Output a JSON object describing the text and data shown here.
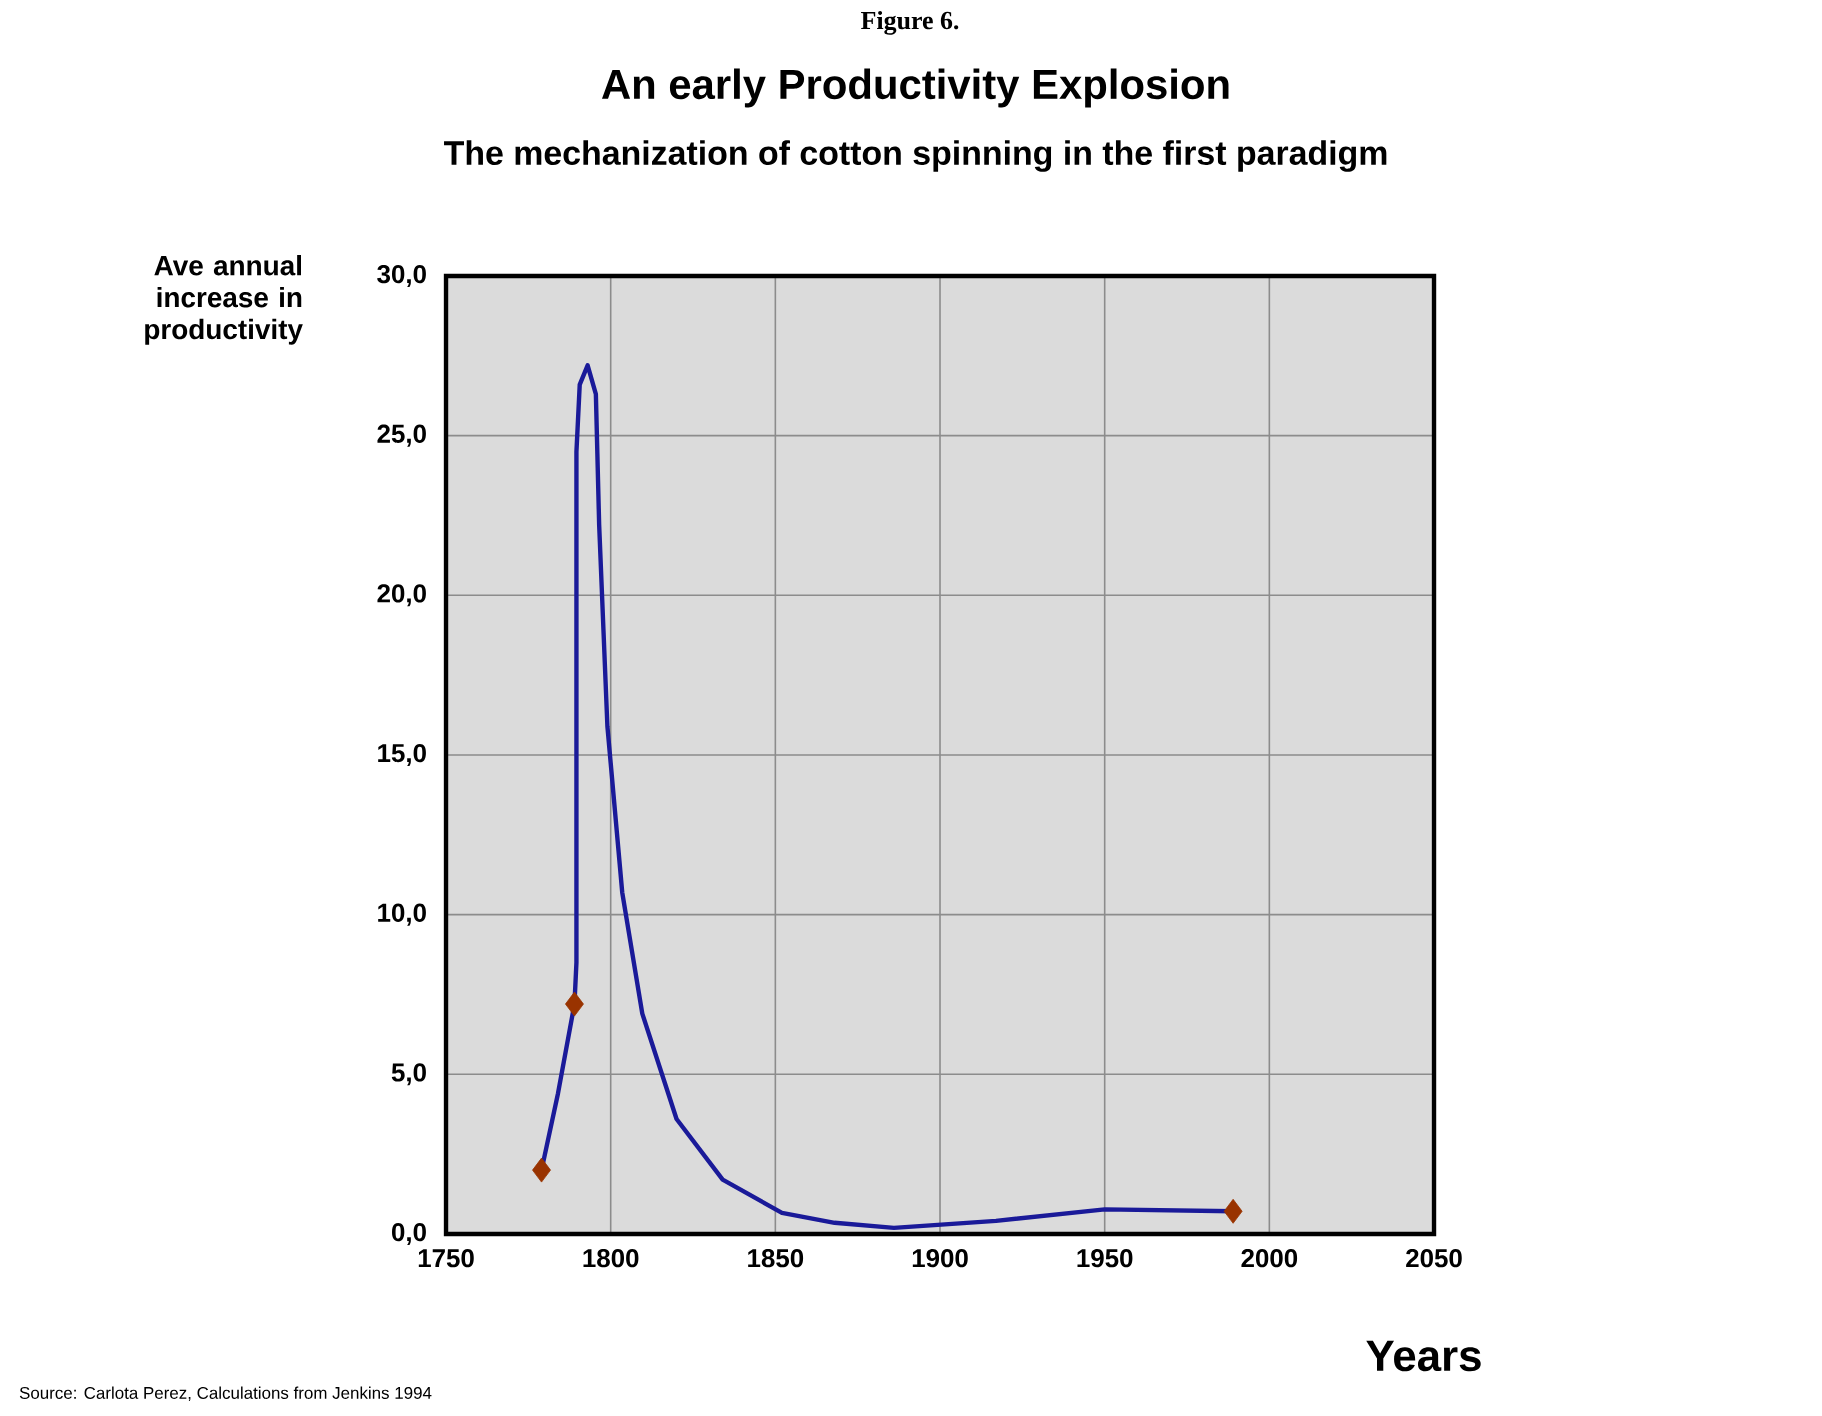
{
  "chart_data": {
    "type": "line",
    "title": "An early Productivity Explosion",
    "subtitle": "The mechanization of cotton spinning in the first paradigm",
    "xlabel": "Years",
    "ylabel": "Ave annual increase in productivity",
    "annotations": [
      "Figure 6.",
      "Source: Carlota Perez, Calculations from Jenkins 1994"
    ],
    "xlim": [
      1750,
      2050
    ],
    "xticks": [
      1750,
      1800,
      1850,
      1900,
      1950,
      2000,
      2050
    ],
    "ylim": [
      0,
      30
    ],
    "yticks": [
      {
        "value": 0,
        "label": "0,0"
      },
      {
        "value": 5,
        "label": "5,0"
      },
      {
        "value": 10,
        "label": "10,0"
      },
      {
        "value": 15,
        "label": "15,0"
      },
      {
        "value": 20,
        "label": "20,0"
      },
      {
        "value": 25,
        "label": "25,0"
      },
      {
        "value": 30,
        "label": "30,0"
      }
    ],
    "grid": true,
    "series": [
      {
        "color": "#1a1a99",
        "marker": "none",
        "line_style": "solid",
        "x": [
          1779,
          1784,
          1789,
          1789.6,
          1789.6,
          1790.6,
          1793,
          1795.5,
          1796.5,
          1799,
          1803.5,
          1809.6,
          1820,
          1834,
          1852,
          1868,
          1886,
          1917,
          1950,
          1989
        ],
        "values": [
          2.0,
          4.4,
          7.2,
          8.5,
          24.5,
          26.6,
          27.2,
          26.3,
          22.2,
          15.9,
          10.7,
          6.9,
          3.6,
          1.7,
          0.66,
          0.35,
          0.19,
          0.41,
          0.77,
          0.71
        ]
      },
      {
        "type": "scatter",
        "color": "#993300",
        "marker": "diamond",
        "x": [
          1779,
          1789,
          1989
        ],
        "values": [
          2.0,
          7.2,
          0.71
        ]
      }
    ]
  }
}
